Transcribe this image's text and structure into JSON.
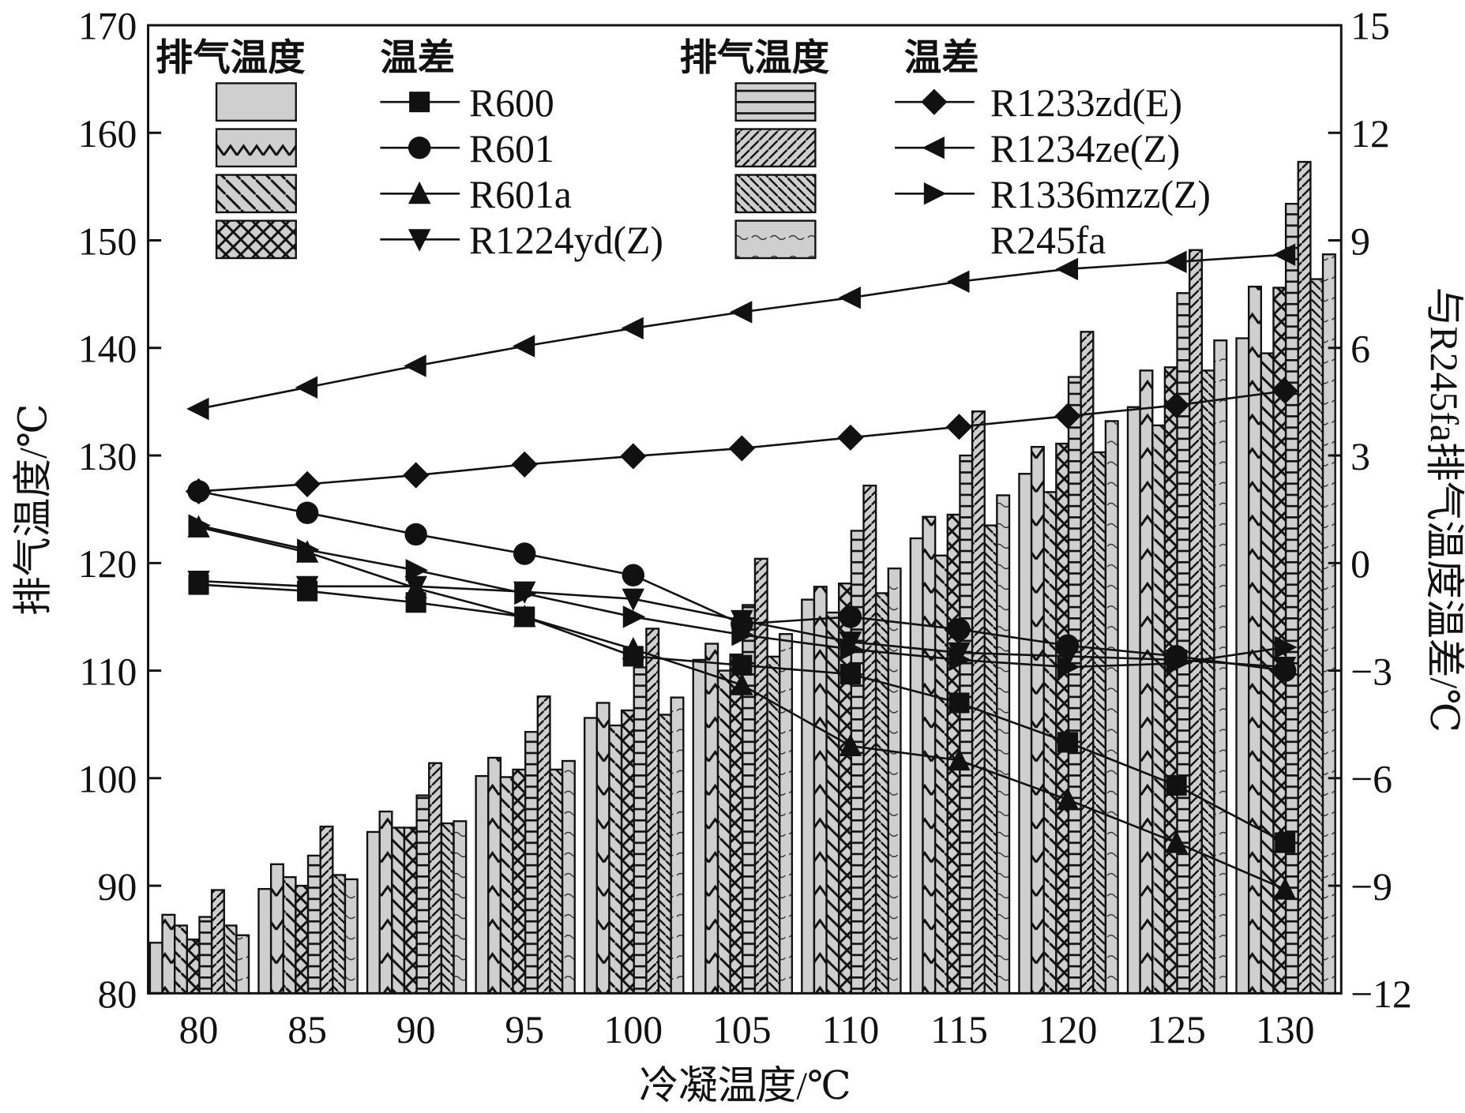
{
  "chart_data": {
    "type": "bar+line",
    "xlabel": "冷凝温度/℃",
    "ylabel": "排气温度/℃",
    "y2label": "与R245fa排气温度温差/℃",
    "categories": [
      80,
      85,
      90,
      95,
      100,
      105,
      110,
      115,
      120,
      125,
      130
    ],
    "ylim": [
      80,
      170
    ],
    "yticks": [
      80,
      90,
      100,
      110,
      120,
      130,
      140,
      150,
      160,
      170
    ],
    "y2lim": [
      -12,
      15
    ],
    "y2ticks": [
      -12,
      -9,
      -6,
      -3,
      0,
      3,
      6,
      9,
      12,
      15
    ],
    "legend": {
      "header_bar": "排气温度",
      "header_line": "温差",
      "placement": "top"
    },
    "bar_series": [
      {
        "name": "R600",
        "pattern": "plain",
        "values": [
          84.7,
          89.7,
          95.0,
          100.2,
          105.6,
          111.0,
          116.6,
          122.3,
          128.3,
          134.5,
          140.9
        ]
      },
      {
        "name": "R601",
        "pattern": "chevron",
        "values": [
          87.3,
          92.0,
          96.9,
          101.9,
          107.0,
          112.5,
          117.8,
          124.3,
          130.8,
          137.9,
          145.7
        ]
      },
      {
        "name": "R601a",
        "pattern": "backslash",
        "values": [
          86.3,
          90.8,
          95.4,
          100.1,
          104.9,
          110.0,
          115.4,
          120.7,
          126.6,
          132.8,
          139.5
        ]
      },
      {
        "name": "R1224yd(Z)",
        "pattern": "cross",
        "values": [
          85.0,
          90.0,
          95.4,
          100.8,
          106.3,
          111.5,
          118.1,
          124.5,
          131.1,
          138.2,
          145.6
        ]
      },
      {
        "name": "R1233zd(E)",
        "pattern": "horizontal",
        "values": [
          87.1,
          92.8,
          98.4,
          104.3,
          110.3,
          116.1,
          123.0,
          130.0,
          137.3,
          145.1,
          153.4
        ]
      },
      {
        "name": "R1234ze(Z)",
        "pattern": "slash",
        "values": [
          89.6,
          95.5,
          101.4,
          107.6,
          113.9,
          120.4,
          127.2,
          134.1,
          141.5,
          149.1,
          157.3
        ]
      },
      {
        "name": "R1336mzz(Z)",
        "pattern": "backslash-dense",
        "values": [
          86.3,
          91.0,
          95.8,
          100.8,
          105.9,
          111.3,
          117.2,
          123.5,
          130.3,
          137.9,
          146.4
        ]
      },
      {
        "name": "R245fa",
        "pattern": "wave",
        "values": [
          85.4,
          90.6,
          96.0,
          101.6,
          107.5,
          113.4,
          119.5,
          126.3,
          133.2,
          140.7,
          148.7
        ]
      }
    ],
    "line_series": [
      {
        "name": "R600",
        "marker": "square",
        "values": [
          -0.6,
          -0.78,
          -1.1,
          -1.5,
          -2.6,
          -2.85,
          -3.1,
          -3.9,
          -5.0,
          -6.2,
          -7.8
        ]
      },
      {
        "name": "R601",
        "marker": "circle",
        "values": [
          2.0,
          1.4,
          0.8,
          0.26,
          -0.34,
          -1.7,
          -1.5,
          -1.85,
          -2.3,
          -2.6,
          -3.0
        ]
      },
      {
        "name": "R601a",
        "marker": "triangle-up",
        "values": [
          1.0,
          0.3,
          -0.7,
          -1.5,
          -2.4,
          -3.4,
          -5.1,
          -5.5,
          -6.6,
          -7.8,
          -9.1
        ]
      },
      {
        "name": "R1224yd(Z)",
        "marker": "triangle-down",
        "values": [
          -0.5,
          -0.65,
          -0.65,
          -0.8,
          -1.0,
          -1.6,
          -2.2,
          -2.5,
          -2.6,
          -2.7,
          -2.9
        ]
      },
      {
        "name": "R1233zd(E)",
        "marker": "diamond",
        "values": [
          2.0,
          2.2,
          2.45,
          2.75,
          2.98,
          3.2,
          3.5,
          3.8,
          4.1,
          4.4,
          4.8
        ]
      },
      {
        "name": "R1234ze(Z)",
        "marker": "triangle-left",
        "values": [
          4.3,
          4.9,
          5.5,
          6.05,
          6.55,
          7.0,
          7.4,
          7.85,
          8.2,
          8.4,
          8.6
        ]
      },
      {
        "name": "R1336mzz(Z)",
        "marker": "triangle-right",
        "values": [
          1.05,
          0.37,
          -0.2,
          -0.85,
          -1.5,
          -2.0,
          -2.4,
          -2.7,
          -2.9,
          -2.8,
          -2.35
        ]
      }
    ]
  }
}
